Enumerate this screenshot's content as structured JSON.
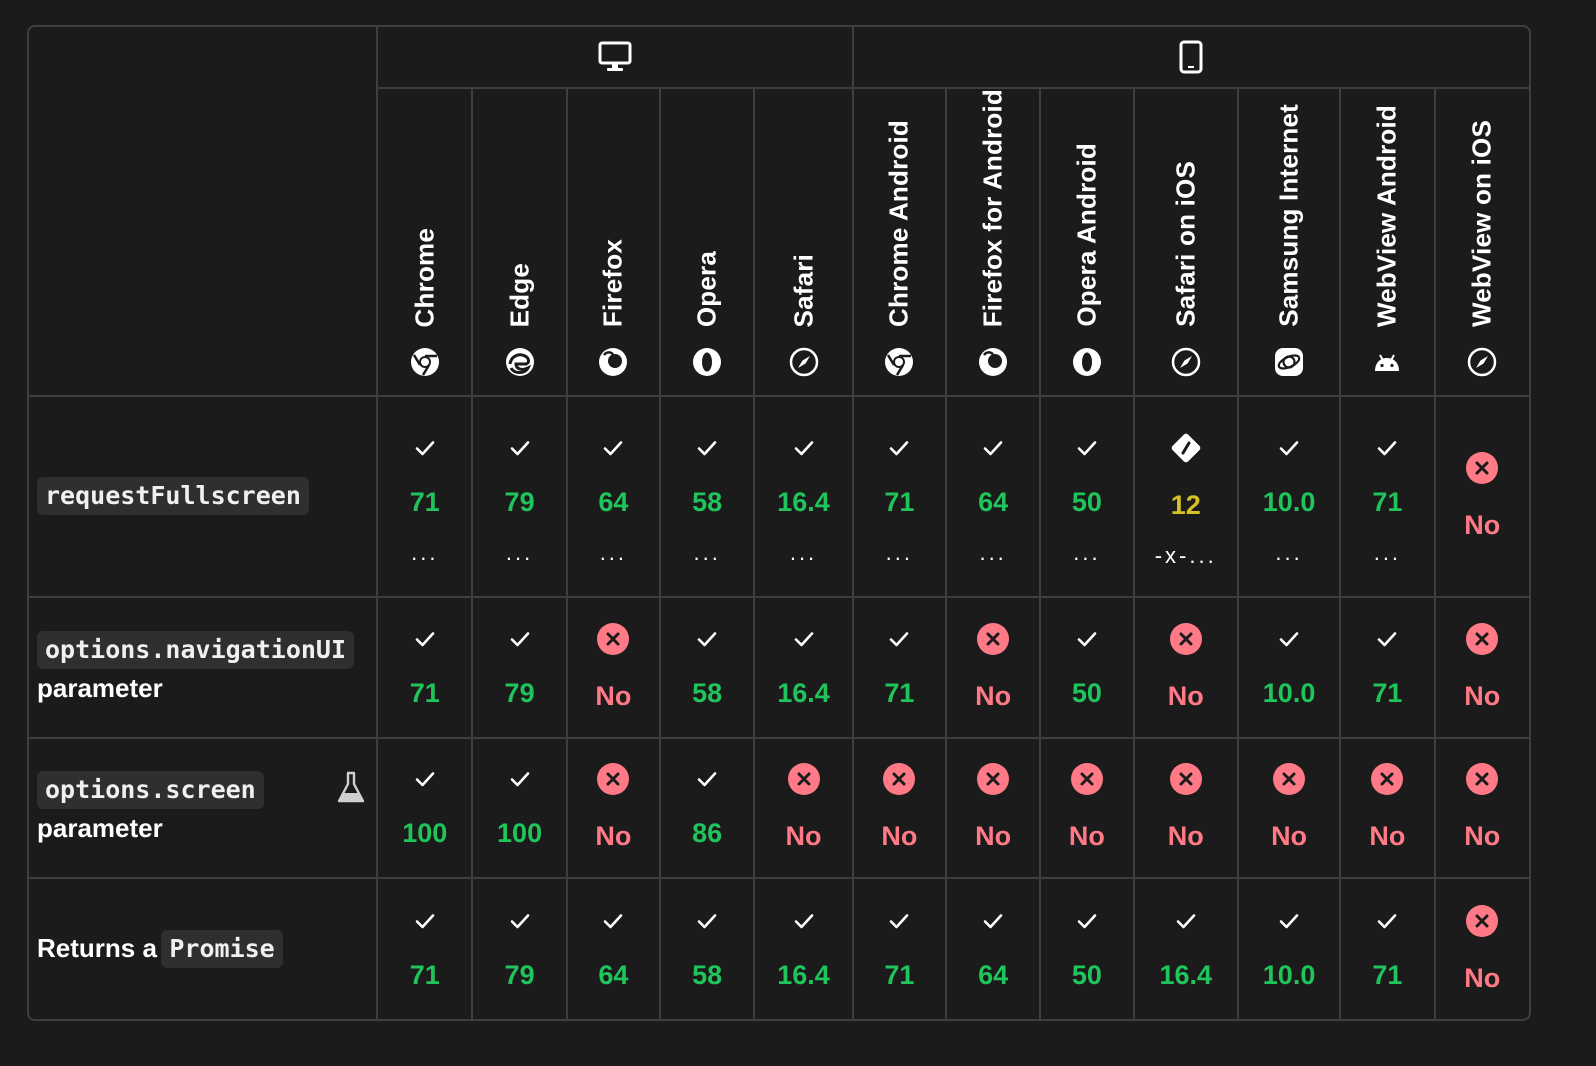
{
  "platforms": [
    {
      "name": "desktop",
      "icon": "monitor-icon",
      "span": 5
    },
    {
      "name": "mobile",
      "icon": "phone-icon",
      "span": 7
    }
  ],
  "browsers": [
    {
      "label": "Chrome",
      "icon": "chrome-icon"
    },
    {
      "label": "Edge",
      "icon": "edge-icon"
    },
    {
      "label": "Firefox",
      "icon": "firefox-icon"
    },
    {
      "label": "Opera",
      "icon": "opera-icon"
    },
    {
      "label": "Safari",
      "icon": "safari-icon"
    },
    {
      "label": "Chrome Android",
      "icon": "chrome-icon"
    },
    {
      "label": "Firefox for Android",
      "icon": "firefox-icon"
    },
    {
      "label": "Opera Android",
      "icon": "opera-icon"
    },
    {
      "label": "Safari on iOS",
      "icon": "safari-icon"
    },
    {
      "label": "Samsung Internet",
      "icon": "samsung-internet-icon"
    },
    {
      "label": "WebView Android",
      "icon": "android-icon"
    },
    {
      "label": "WebView on iOS",
      "icon": "safari-icon"
    }
  ],
  "features": [
    {
      "code": "requestFullscreen",
      "suffix": "",
      "prefix": "",
      "experimental": false,
      "cells": [
        {
          "s": "yes",
          "v": "71",
          "more": "..."
        },
        {
          "s": "yes",
          "v": "79",
          "more": "..."
        },
        {
          "s": "yes",
          "v": "64",
          "more": "..."
        },
        {
          "s": "yes",
          "v": "58",
          "more": "..."
        },
        {
          "s": "yes",
          "v": "16.4",
          "more": "..."
        },
        {
          "s": "yes",
          "v": "71",
          "more": "..."
        },
        {
          "s": "yes",
          "v": "64",
          "more": "..."
        },
        {
          "s": "yes",
          "v": "50",
          "more": "..."
        },
        {
          "s": "partial",
          "v": "12",
          "more": "-x-..."
        },
        {
          "s": "yes",
          "v": "10.0",
          "more": "..."
        },
        {
          "s": "yes",
          "v": "71",
          "more": "..."
        },
        {
          "s": "no",
          "v": "No",
          "more": ""
        }
      ]
    },
    {
      "code": "options.navigationUI",
      "suffix": "parameter",
      "prefix": "",
      "experimental": false,
      "cells": [
        {
          "s": "yes",
          "v": "71"
        },
        {
          "s": "yes",
          "v": "79"
        },
        {
          "s": "no",
          "v": "No"
        },
        {
          "s": "yes",
          "v": "58"
        },
        {
          "s": "yes",
          "v": "16.4"
        },
        {
          "s": "yes",
          "v": "71"
        },
        {
          "s": "no",
          "v": "No"
        },
        {
          "s": "yes",
          "v": "50"
        },
        {
          "s": "no",
          "v": "No"
        },
        {
          "s": "yes",
          "v": "10.0"
        },
        {
          "s": "yes",
          "v": "71"
        },
        {
          "s": "no",
          "v": "No"
        }
      ]
    },
    {
      "code": "options.screen",
      "suffix": "parameter",
      "prefix": "",
      "experimental": true,
      "cells": [
        {
          "s": "yes",
          "v": "100"
        },
        {
          "s": "yes",
          "v": "100"
        },
        {
          "s": "no",
          "v": "No"
        },
        {
          "s": "yes",
          "v": "86"
        },
        {
          "s": "no",
          "v": "No"
        },
        {
          "s": "no",
          "v": "No"
        },
        {
          "s": "no",
          "v": "No"
        },
        {
          "s": "no",
          "v": "No"
        },
        {
          "s": "no",
          "v": "No"
        },
        {
          "s": "no",
          "v": "No"
        },
        {
          "s": "no",
          "v": "No"
        },
        {
          "s": "no",
          "v": "No"
        }
      ]
    },
    {
      "code": "Promise",
      "suffix": "",
      "prefix": "Returns a",
      "experimental": false,
      "cells": [
        {
          "s": "yes",
          "v": "71"
        },
        {
          "s": "yes",
          "v": "79"
        },
        {
          "s": "yes",
          "v": "64"
        },
        {
          "s": "yes",
          "v": "58"
        },
        {
          "s": "yes",
          "v": "16.4"
        },
        {
          "s": "yes",
          "v": "71"
        },
        {
          "s": "yes",
          "v": "64"
        },
        {
          "s": "yes",
          "v": "50"
        },
        {
          "s": "yes",
          "v": "16.4"
        },
        {
          "s": "yes",
          "v": "10.0"
        },
        {
          "s": "yes",
          "v": "71"
        },
        {
          "s": "no",
          "v": "No"
        }
      ]
    }
  ],
  "colors": {
    "yes": "#1fc55b",
    "no": "#ff7a86",
    "partial": "#d7c225",
    "border": "#3e3e3e",
    "background": "#1b1b1b"
  }
}
